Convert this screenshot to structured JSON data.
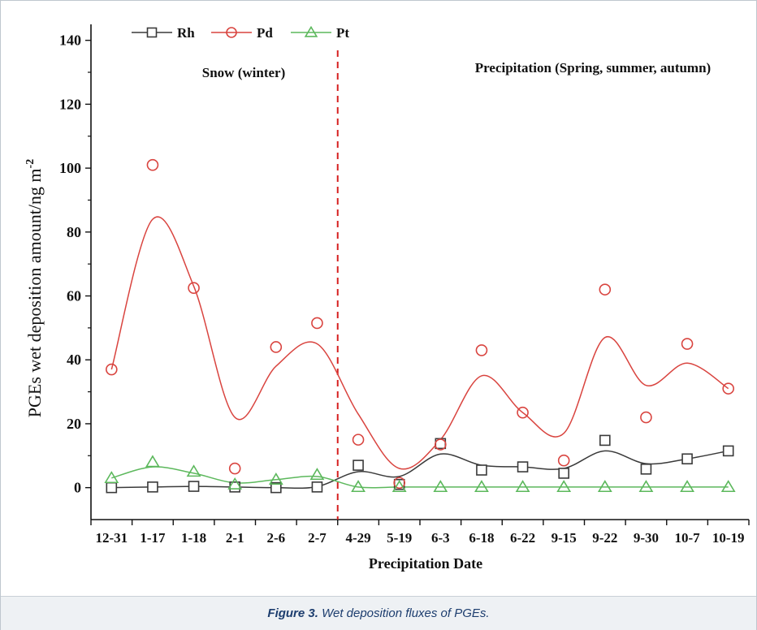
{
  "caption": {
    "label": "Figure 3.",
    "text": " Wet deposition fluxes of PGEs."
  },
  "chart_data": {
    "type": "scatter",
    "categories": [
      "12-31",
      "1-17",
      "1-18",
      "2-1",
      "2-6",
      "2-7",
      "4-29",
      "5-19",
      "6-3",
      "6-18",
      "6-22",
      "9-15",
      "9-22",
      "9-30",
      "10-7",
      "10-19"
    ],
    "xlabel": "Precipitation Date",
    "ylabel": "PGEs wet deposition amount/ng m",
    "ylabel_sup": "-2",
    "ylim": [
      -10,
      145
    ],
    "yticks": [
      0,
      20,
      40,
      60,
      80,
      100,
      120,
      140
    ],
    "grid": false,
    "legend_position": "top-left",
    "divider_between": [
      5,
      6
    ],
    "annotations": [
      {
        "text": "Snow (winter)",
        "region": "winter"
      },
      {
        "text": "Precipitation (Spring, summer, autumn)",
        "region": "other"
      }
    ],
    "series": [
      {
        "name": "Rh",
        "marker": "square",
        "color": "#3a3a3a",
        "values": [
          0.0,
          0.2,
          0.4,
          0.2,
          0.0,
          0.2,
          7.0,
          1.0,
          13.8,
          5.5,
          6.5,
          4.5,
          14.8,
          5.8,
          9.0,
          11.5
        ],
        "trend": [
          0.0,
          0.2,
          0.4,
          0.2,
          0.0,
          0.3,
          5.0,
          3.5,
          10.5,
          7.0,
          6.5,
          6.0,
          11.5,
          7.5,
          9.0,
          11.5
        ]
      },
      {
        "name": "Pd",
        "marker": "circle",
        "color": "#d9443f",
        "values": [
          37.0,
          101.0,
          62.5,
          6.0,
          44.0,
          51.5,
          15.0,
          1.5,
          13.5,
          43.0,
          23.5,
          8.5,
          62.0,
          22.0,
          45.0,
          31.0
        ],
        "trend": [
          37.0,
          84.0,
          63.0,
          22.0,
          38.0,
          45.0,
          23.0,
          6.0,
          15.0,
          35.0,
          23.5,
          17.0,
          47.0,
          32.0,
          39.0,
          31.0
        ]
      },
      {
        "name": "Pt",
        "marker": "triangle",
        "color": "#5cb85c",
        "values": [
          3.0,
          8.0,
          5.0,
          1.0,
          2.5,
          4.0,
          0.2,
          0.2,
          0.2,
          0.2,
          0.2,
          0.2,
          0.2,
          0.2,
          0.2,
          0.2
        ],
        "trend": [
          3.0,
          6.5,
          4.5,
          1.5,
          2.5,
          3.5,
          0.2,
          0.2,
          0.2,
          0.2,
          0.2,
          0.2,
          0.2,
          0.2,
          0.2,
          0.2
        ]
      }
    ]
  }
}
